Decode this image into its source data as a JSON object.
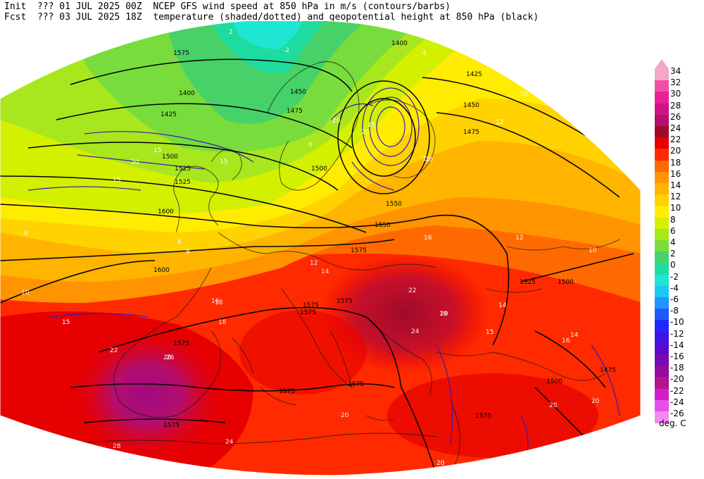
{
  "header": {
    "init_label": "Init",
    "fcst_label": "Fcst",
    "init_run": "??? 01 JUL 2025 00Z",
    "fcst_time": "??? 03 JUL 2025 18Z",
    "title_line1": "NCEP GFS wind speed at 850 hPa in m/s (contours/barbs)",
    "title_line2": "temperature (shaded/dotted) and geopotential height at 850 hPa (black)"
  },
  "map": {
    "variable_shaded": "temperature at 850 hPa",
    "variable_contour_black": "geopotential height at 850 hPa",
    "variable_contour_colored": "wind speed at 850 hPa",
    "height_labels": [
      "1575",
      "1400",
      "1425",
      "1450",
      "1475",
      "1500",
      "1525",
      "1550",
      "1600",
      "1400",
      "1425",
      "1450",
      "1475",
      "1525",
      "1500",
      "1550",
      "1575",
      "1575",
      "1575",
      "1575",
      "1575",
      "1575",
      "1575",
      "1600",
      "1525",
      "1500",
      "1475",
      "1500",
      "1575",
      "1575"
    ],
    "wind_labels": [
      "15",
      "20",
      "15",
      "15",
      "20",
      "15",
      "20",
      "15",
      "15",
      "15",
      "20",
      "15"
    ],
    "temperature_labels": [
      "2",
      "-2",
      "6",
      "4",
      "8",
      "10",
      "12",
      "14",
      "16",
      "18",
      "20",
      "22",
      "24",
      "26",
      "28",
      "10",
      "12",
      "14",
      "16",
      "18",
      "20",
      "22",
      "24",
      "26",
      "20",
      "20",
      "18",
      "16",
      "14",
      "12",
      "10",
      "8",
      "6"
    ]
  },
  "legend": {
    "unit": "deg. C",
    "ticks": [
      "34",
      "32",
      "30",
      "28",
      "26",
      "24",
      "22",
      "20",
      "18",
      "16",
      "14",
      "12",
      "10",
      "8",
      "6",
      "4",
      "2",
      "0",
      "-2",
      "-4",
      "-6",
      "-8",
      "-10",
      "-12",
      "-14",
      "-16",
      "-18",
      "-20",
      "-22",
      "-24",
      "-26"
    ],
    "colors": [
      "#f3a6c8",
      "#f050a8",
      "#e8209a",
      "#d01288",
      "#b40e6e",
      "#a00a2a",
      "#e60000",
      "#ff2a00",
      "#ff6a00",
      "#ff9400",
      "#ffb400",
      "#ffd200",
      "#ffec00",
      "#d2f000",
      "#a8e61e",
      "#78dc3c",
      "#46d268",
      "#1edca0",
      "#1ee6d2",
      "#1ec8f0",
      "#1e96ff",
      "#1e5aff",
      "#1e28ff",
      "#3c14e6",
      "#5a0ac8",
      "#780ab4",
      "#960aa0",
      "#b4148c",
      "#d21ec8",
      "#e650e6",
      "#f08cf0"
    ]
  }
}
